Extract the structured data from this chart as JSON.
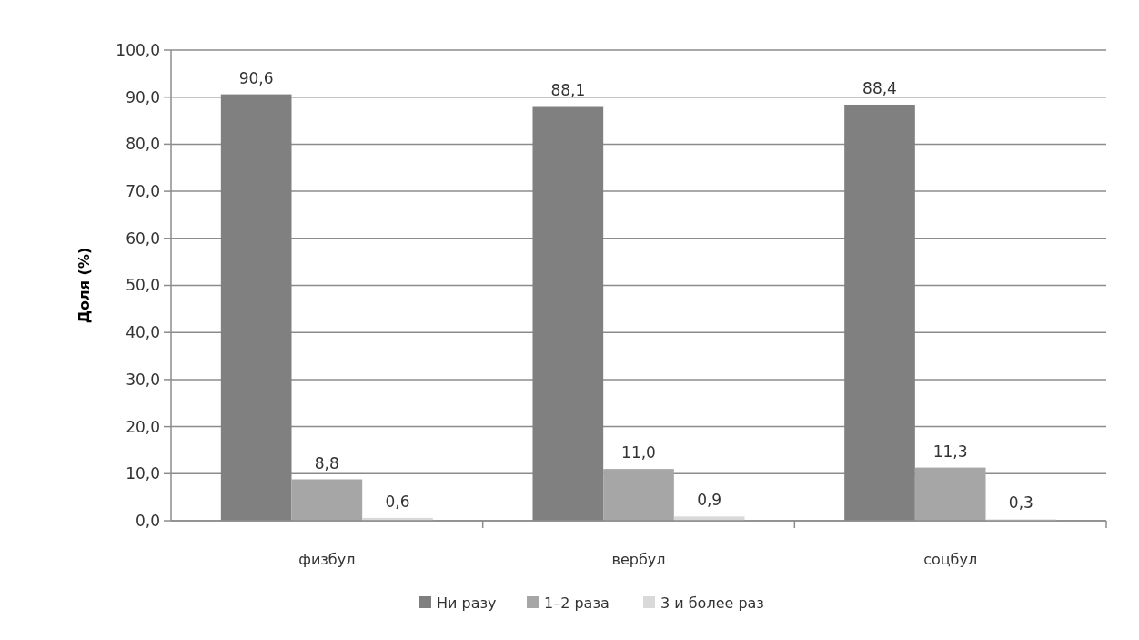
{
  "chart_data": {
    "type": "bar",
    "ylabel": "Доля (%)",
    "categories": [
      "физбул",
      "вербул",
      "соцбул"
    ],
    "series": [
      {
        "name": "Ни разу",
        "color": "#808080",
        "values": [
          90.6,
          88.1,
          88.4
        ],
        "value_labels": [
          "90,6",
          "88,1",
          "88,4"
        ]
      },
      {
        "name": "1–2 раза",
        "color": "#a6a6a6",
        "values": [
          8.8,
          11.0,
          11.3
        ],
        "value_labels": [
          "8,8",
          "11,0",
          "11,3"
        ]
      },
      {
        "name": "3 и более раз",
        "color": "#d9d9d9",
        "values": [
          0.6,
          0.9,
          0.3
        ],
        "value_labels": [
          "0,6",
          "0,9",
          "0,3"
        ]
      }
    ],
    "ylim": [
      0,
      100
    ],
    "yticks": [
      {
        "value": 0,
        "label": "0,0"
      },
      {
        "value": 10,
        "label": "10,0"
      },
      {
        "value": 20,
        "label": "20,0"
      },
      {
        "value": 30,
        "label": "30,0"
      },
      {
        "value": 40,
        "label": "40,0"
      },
      {
        "value": 50,
        "label": "50,0"
      },
      {
        "value": 60,
        "label": "60,0"
      },
      {
        "value": 70,
        "label": "70,0"
      },
      {
        "value": 80,
        "label": "80,0"
      },
      {
        "value": 90,
        "label": "90,0"
      },
      {
        "value": 100,
        "label": "100,0"
      }
    ],
    "grid": "y",
    "legend": "bottom"
  }
}
